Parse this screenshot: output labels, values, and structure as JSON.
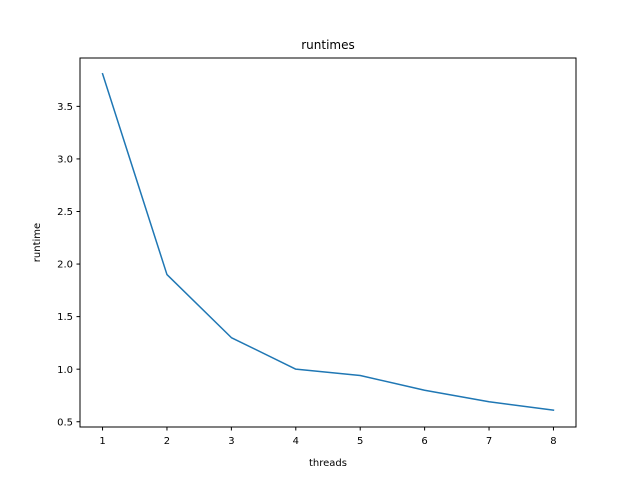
{
  "chart_data": {
    "type": "line",
    "title": "runtimes",
    "xlabel": "threads",
    "ylabel": "runtime",
    "x": [
      1,
      2,
      3,
      4,
      5,
      6,
      7,
      8
    ],
    "series": [
      {
        "values": [
          3.81,
          1.9,
          1.3,
          1.0,
          0.94,
          0.8,
          0.69,
          0.61
        ],
        "color": "#1f77b4"
      }
    ],
    "xlim": [
      0.65,
      8.35
    ],
    "ylim": [
      0.45,
      3.96
    ],
    "xticks": [
      1,
      2,
      3,
      4,
      5,
      6,
      7,
      8
    ],
    "yticks": [
      0.5,
      1.0,
      1.5,
      2.0,
      2.5,
      3.0,
      3.5
    ],
    "ytick_labels": [
      "0.5",
      "1.0",
      "1.5",
      "2.0",
      "2.5",
      "3.0",
      "3.5"
    ],
    "grid": false,
    "legend": "none"
  }
}
